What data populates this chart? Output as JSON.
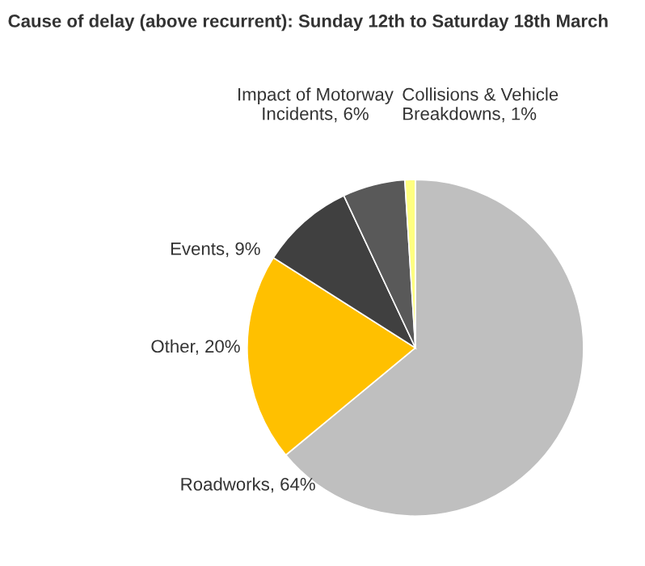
{
  "chart_data": {
    "type": "pie",
    "title": "Cause of delay (above recurrent): Sunday 12th to Saturday 18th March",
    "categories": [
      "Roadworks",
      "Other",
      "Events",
      "Impact of Motorway\nIncidents",
      "Collisions & Vehicle\nBreakdowns"
    ],
    "values": [
      64,
      20,
      9,
      6,
      1
    ],
    "value_labels": [
      "64%",
      "20%",
      "9%",
      "6%",
      "1%"
    ],
    "colors": [
      "#bfbfbf",
      "#ffc000",
      "#404040",
      "#595959",
      "#ffff80"
    ],
    "legend": false
  }
}
